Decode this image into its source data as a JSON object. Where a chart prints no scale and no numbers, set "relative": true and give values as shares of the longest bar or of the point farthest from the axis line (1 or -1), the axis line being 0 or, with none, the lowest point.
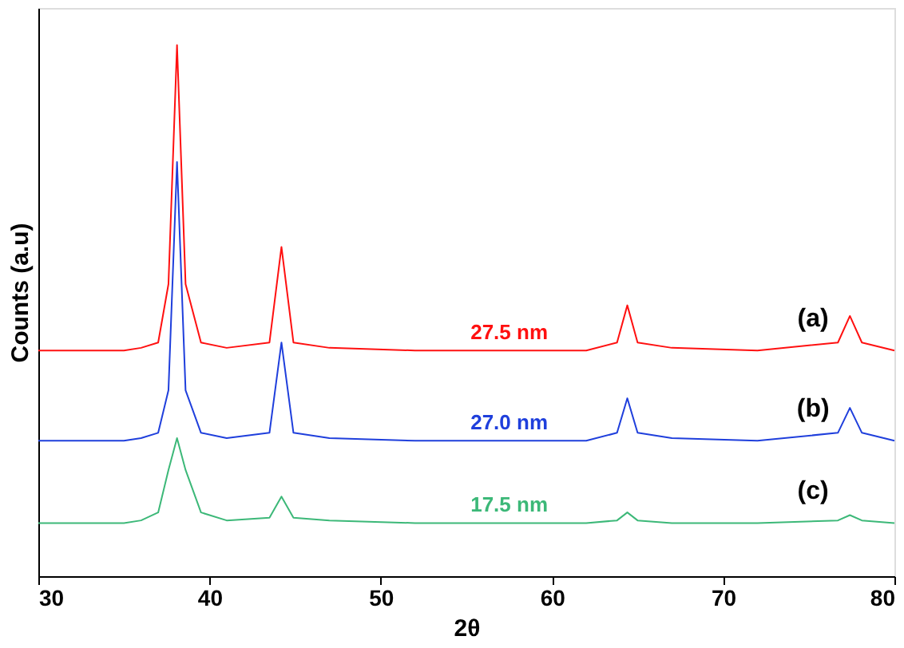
{
  "chart_data": {
    "type": "line",
    "relative": true,
    "xlabel": "2θ",
    "ylabel": "Counts (a.u)",
    "xlim": [
      30,
      80
    ],
    "xticks": [
      30,
      40,
      50,
      60,
      70,
      80
    ],
    "grid": false,
    "x": [
      30,
      35,
      36,
      37,
      37.6,
      38.1,
      38.6,
      39.5,
      41,
      43.5,
      44.2,
      44.9,
      47,
      52,
      57,
      62,
      63.8,
      64.4,
      65,
      67,
      72,
      76.7,
      77.4,
      78.1,
      80
    ],
    "series": [
      {
        "name": "(a)",
        "color": "#ff1010",
        "values": [
          0.425,
          0.425,
          0.43,
          0.44,
          0.55,
          1.0,
          0.55,
          0.44,
          0.43,
          0.44,
          0.62,
          0.44,
          0.43,
          0.425,
          0.425,
          0.425,
          0.44,
          0.51,
          0.44,
          0.43,
          0.425,
          0.44,
          0.49,
          0.44,
          0.425
        ]
      },
      {
        "name": "(b)",
        "color": "#1f3fdc",
        "values": [
          0.255,
          0.255,
          0.26,
          0.27,
          0.35,
          0.78,
          0.35,
          0.27,
          0.26,
          0.27,
          0.44,
          0.27,
          0.26,
          0.255,
          0.255,
          0.255,
          0.27,
          0.335,
          0.27,
          0.26,
          0.255,
          0.27,
          0.317,
          0.27,
          0.255
        ]
      },
      {
        "name": "(c)",
        "color": "#3cb878",
        "values": [
          0.1,
          0.1,
          0.105,
          0.12,
          0.2,
          0.26,
          0.2,
          0.12,
          0.105,
          0.11,
          0.15,
          0.11,
          0.105,
          0.1,
          0.1,
          0.1,
          0.105,
          0.12,
          0.105,
          0.1,
          0.1,
          0.105,
          0.115,
          0.105,
          0.1
        ]
      }
    ],
    "annotations": [
      "27.5 nm",
      "27.0 nm",
      "17.5 nm"
    ]
  }
}
